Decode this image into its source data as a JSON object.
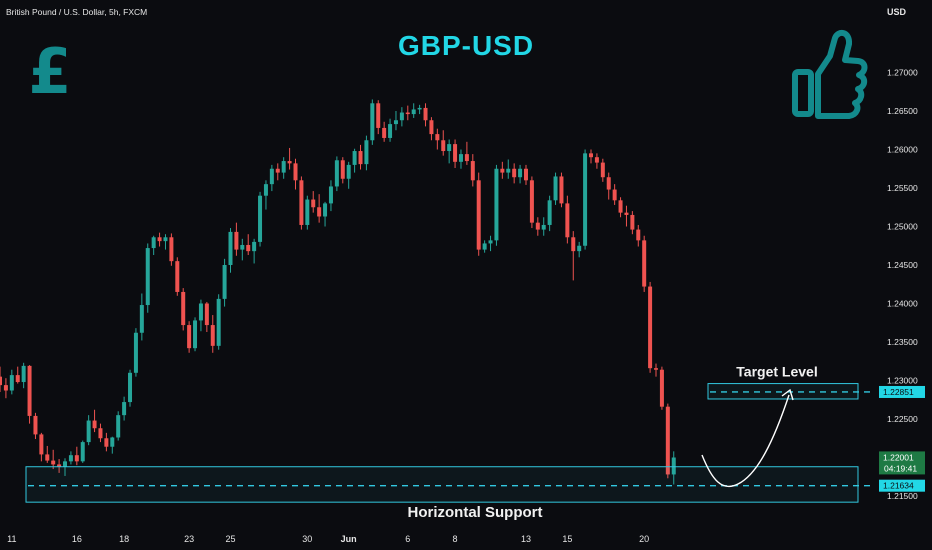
{
  "header": {
    "symbol": "British Pound / U.S. Dollar, 5h, FXCM",
    "currency": "USD"
  },
  "colors": {
    "up": "#26a69a",
    "down": "#ef5350",
    "accent": "#22d7e6",
    "box": "#32c8e0",
    "background": "#0b0c10",
    "axis_text": "#e6e6e6",
    "icon": "#138a8c"
  },
  "icons": [
    "pound-sign-icon",
    "thumbs-up-icon"
  ],
  "chart_data": {
    "type": "candlestick",
    "title": "GBP-USD",
    "ylim": [
      1.212,
      1.2735
    ],
    "y_ticks": [
      "1.27000",
      "1.26500",
      "1.26000",
      "1.25500",
      "1.25000",
      "1.24500",
      "1.24000",
      "1.23500",
      "1.23000",
      "1.22500",
      "1.22000",
      "1.21500"
    ],
    "x_ticks": [
      {
        "label": "11",
        "i": 2
      },
      {
        "label": "16",
        "i": 13
      },
      {
        "label": "18",
        "i": 21
      },
      {
        "label": "23",
        "i": 32
      },
      {
        "label": "25",
        "i": 39
      },
      {
        "label": "30",
        "i": 52
      },
      {
        "label": "Jun",
        "i": 59
      },
      {
        "label": "6",
        "i": 69
      },
      {
        "label": "8",
        "i": 77
      },
      {
        "label": "13",
        "i": 89
      },
      {
        "label": "15",
        "i": 96
      },
      {
        "label": "20",
        "i": 109
      }
    ],
    "candles": [
      [
        1.2305,
        1.2318,
        1.2285,
        1.2294
      ],
      [
        1.2294,
        1.2303,
        1.2277,
        1.2287
      ],
      [
        1.2287,
        1.2314,
        1.2282,
        1.2307
      ],
      [
        1.2307,
        1.2318,
        1.2296,
        1.2298
      ],
      [
        1.2298,
        1.2323,
        1.229,
        1.2319
      ],
      [
        1.2319,
        1.232,
        1.2244,
        1.2254
      ],
      [
        1.2254,
        1.2258,
        1.2224,
        1.223
      ],
      [
        1.223,
        1.2232,
        1.2195,
        1.2204
      ],
      [
        1.2204,
        1.2215,
        1.2193,
        1.2196
      ],
      [
        1.2196,
        1.221,
        1.2185,
        1.2191
      ],
      [
        1.2191,
        1.2198,
        1.218,
        1.2188
      ],
      [
        1.2188,
        1.2199,
        1.2176,
        1.2195
      ],
      [
        1.2195,
        1.2208,
        1.2191,
        1.2203
      ],
      [
        1.2203,
        1.2214,
        1.219,
        1.2195
      ],
      [
        1.2195,
        1.2222,
        1.2193,
        1.222
      ],
      [
        1.222,
        1.2255,
        1.2216,
        1.2248
      ],
      [
        1.2248,
        1.2262,
        1.2233,
        1.2238
      ],
      [
        1.2238,
        1.2244,
        1.222,
        1.2225
      ],
      [
        1.2225,
        1.2232,
        1.2208,
        1.2214
      ],
      [
        1.2214,
        1.2227,
        1.2205,
        1.2226
      ],
      [
        1.2226,
        1.226,
        1.2222,
        1.2255
      ],
      [
        1.2255,
        1.2279,
        1.2248,
        1.2272
      ],
      [
        1.2272,
        1.2314,
        1.2266,
        1.231
      ],
      [
        1.231,
        1.2368,
        1.2305,
        1.2362
      ],
      [
        1.2362,
        1.2413,
        1.2352,
        1.2398
      ],
      [
        1.2398,
        1.2478,
        1.2388,
        1.2472
      ],
      [
        1.2472,
        1.2488,
        1.2463,
        1.2486
      ],
      [
        1.2486,
        1.2492,
        1.2474,
        1.2481
      ],
      [
        1.2481,
        1.249,
        1.247,
        1.2486
      ],
      [
        1.2486,
        1.2491,
        1.2449,
        1.2455
      ],
      [
        1.2455,
        1.246,
        1.241,
        1.2415
      ],
      [
        1.2415,
        1.242,
        1.2365,
        1.2372
      ],
      [
        1.2372,
        1.2377,
        1.2336,
        1.2342
      ],
      [
        1.2342,
        1.2382,
        1.2338,
        1.2378
      ],
      [
        1.2378,
        1.2405,
        1.2364,
        1.24
      ],
      [
        1.24,
        1.2402,
        1.2363,
        1.2372
      ],
      [
        1.2372,
        1.2385,
        1.2336,
        1.2345
      ],
      [
        1.2345,
        1.2412,
        1.234,
        1.2406
      ],
      [
        1.2406,
        1.2458,
        1.2396,
        1.245
      ],
      [
        1.245,
        1.2498,
        1.244,
        1.2493
      ],
      [
        1.2493,
        1.2505,
        1.2462,
        1.247
      ],
      [
        1.247,
        1.2484,
        1.2456,
        1.2476
      ],
      [
        1.2476,
        1.249,
        1.2463,
        1.2468
      ],
      [
        1.2468,
        1.2484,
        1.2452,
        1.248
      ],
      [
        1.248,
        1.2545,
        1.2474,
        1.254
      ],
      [
        1.254,
        1.256,
        1.2522,
        1.2555
      ],
      [
        1.2555,
        1.258,
        1.2546,
        1.2575
      ],
      [
        1.2575,
        1.2582,
        1.256,
        1.257
      ],
      [
        1.257,
        1.259,
        1.2562,
        1.2585
      ],
      [
        1.2585,
        1.2602,
        1.2574,
        1.2582
      ],
      [
        1.2582,
        1.2588,
        1.2548,
        1.256
      ],
      [
        1.256,
        1.2565,
        1.2496,
        1.2502
      ],
      [
        1.2502,
        1.254,
        1.2496,
        1.2535
      ],
      [
        1.2535,
        1.2546,
        1.2518,
        1.2525
      ],
      [
        1.2525,
        1.2542,
        1.2505,
        1.2513
      ],
      [
        1.2513,
        1.2532,
        1.25,
        1.253
      ],
      [
        1.253,
        1.256,
        1.252,
        1.2552
      ],
      [
        1.2552,
        1.2591,
        1.2546,
        1.2586
      ],
      [
        1.2586,
        1.259,
        1.2556,
        1.2562
      ],
      [
        1.2562,
        1.2584,
        1.2549,
        1.258
      ],
      [
        1.258,
        1.2601,
        1.257,
        1.2598
      ],
      [
        1.2598,
        1.2606,
        1.2574,
        1.2581
      ],
      [
        1.2581,
        1.2618,
        1.2573,
        1.2612
      ],
      [
        1.2612,
        1.2665,
        1.2606,
        1.266
      ],
      [
        1.266,
        1.2664,
        1.262,
        1.2628
      ],
      [
        1.2628,
        1.2636,
        1.261,
        1.2615
      ],
      [
        1.2615,
        1.264,
        1.261,
        1.2633
      ],
      [
        1.2633,
        1.265,
        1.2625,
        1.2638
      ],
      [
        1.2638,
        1.2655,
        1.263,
        1.2648
      ],
      [
        1.2648,
        1.2657,
        1.2638,
        1.2646
      ],
      [
        1.2646,
        1.266,
        1.2641,
        1.2652
      ],
      [
        1.2652,
        1.2658,
        1.2646,
        1.2654
      ],
      [
        1.2654,
        1.266,
        1.263,
        1.2638
      ],
      [
        1.2638,
        1.2642,
        1.2612,
        1.262
      ],
      [
        1.262,
        1.2627,
        1.26,
        1.2612
      ],
      [
        1.2612,
        1.2625,
        1.2592,
        1.2598
      ],
      [
        1.2598,
        1.2613,
        1.2582,
        1.2607
      ],
      [
        1.2607,
        1.2613,
        1.2576,
        1.2584
      ],
      [
        1.2584,
        1.26,
        1.2575,
        1.2594
      ],
      [
        1.2594,
        1.261,
        1.258,
        1.2585
      ],
      [
        1.2585,
        1.2594,
        1.2552,
        1.256
      ],
      [
        1.256,
        1.257,
        1.2462,
        1.247
      ],
      [
        1.247,
        1.2482,
        1.2466,
        1.2478
      ],
      [
        1.2478,
        1.2488,
        1.2468,
        1.2482
      ],
      [
        1.2482,
        1.258,
        1.2475,
        1.2575
      ],
      [
        1.2575,
        1.2584,
        1.2562,
        1.257
      ],
      [
        1.257,
        1.2587,
        1.2562,
        1.2575
      ],
      [
        1.2575,
        1.2582,
        1.2556,
        1.2564
      ],
      [
        1.2564,
        1.258,
        1.2556,
        1.2575
      ],
      [
        1.2575,
        1.258,
        1.2554,
        1.256
      ],
      [
        1.256,
        1.2565,
        1.2498,
        1.2505
      ],
      [
        1.2505,
        1.2512,
        1.2488,
        1.2496
      ],
      [
        1.2496,
        1.2512,
        1.2488,
        1.2502
      ],
      [
        1.2502,
        1.254,
        1.2494,
        1.2534
      ],
      [
        1.2534,
        1.257,
        1.2528,
        1.2565
      ],
      [
        1.2565,
        1.257,
        1.2525,
        1.253
      ],
      [
        1.253,
        1.254,
        1.2478,
        1.2486
      ],
      [
        1.2486,
        1.2494,
        1.243,
        1.2468
      ],
      [
        1.2468,
        1.248,
        1.246,
        1.2475
      ],
      [
        1.2475,
        1.26,
        1.247,
        1.2595
      ],
      [
        1.2595,
        1.26,
        1.2582,
        1.259
      ],
      [
        1.259,
        1.2595,
        1.2575,
        1.2583
      ],
      [
        1.2583,
        1.2588,
        1.2558,
        1.2564
      ],
      [
        1.2564,
        1.257,
        1.2535,
        1.2548
      ],
      [
        1.2548,
        1.2555,
        1.2528,
        1.2534
      ],
      [
        1.2534,
        1.2538,
        1.2512,
        1.2518
      ],
      [
        1.2518,
        1.2527,
        1.25,
        1.2515
      ],
      [
        1.2515,
        1.252,
        1.249,
        1.2496
      ],
      [
        1.2496,
        1.2502,
        1.2474,
        1.2482
      ],
      [
        1.2482,
        1.2488,
        1.2415,
        1.2422
      ],
      [
        1.2422,
        1.2428,
        1.231,
        1.2316
      ],
      [
        1.2316,
        1.2322,
        1.2305,
        1.2314
      ],
      [
        1.2314,
        1.2318,
        1.2262,
        1.2266
      ],
      [
        1.2266,
        1.227,
        1.2173,
        1.2178
      ],
      [
        1.2178,
        1.2208,
        1.2165,
        1.22
      ]
    ],
    "current_price": {
      "value": 1.22001,
      "label": "1.22001",
      "countdown": "04:19:41"
    },
    "support": {
      "label": "Horizontal Support",
      "level": 1.21634,
      "level_label": "1.21634",
      "zone": [
        1.2142,
        1.2188
      ]
    },
    "target": {
      "label": "Target Level",
      "level": 1.22851,
      "level_label": "1.22851",
      "zone": [
        1.2276,
        1.2296
      ]
    }
  }
}
